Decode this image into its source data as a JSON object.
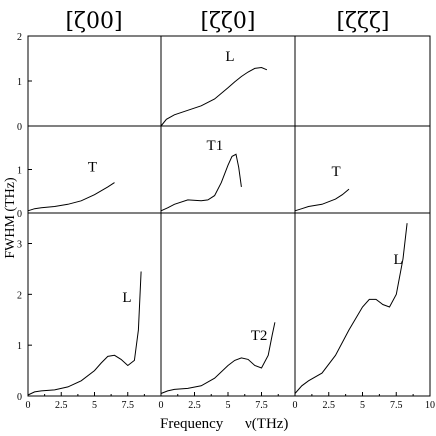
{
  "chart_data": {
    "type": "line",
    "ylabel": "FWHM  (THz)",
    "xlabel_word": "Frequency",
    "xlabel_symbol": "ν(THz)",
    "columns": [
      "[ζ00]",
      "[ζζ0]",
      "[ζζζ]"
    ],
    "x_range": [
      0,
      10
    ],
    "x_tick_labels": [
      "0",
      "2.5",
      "5",
      "7.5",
      "0",
      "2.5",
      "5",
      "7.5",
      "0",
      "2.5",
      "5",
      "7.5",
      "10"
    ],
    "rows": [
      {
        "ylim": [
          0,
          2
        ],
        "y_ticks": [
          "0",
          "1",
          "2"
        ]
      },
      {
        "ylim": [
          0,
          2
        ],
        "y_ticks": [
          "0",
          "1"
        ]
      },
      {
        "ylim": [
          0,
          3.6
        ],
        "y_ticks": [
          "0",
          "1",
          "2",
          "3"
        ]
      }
    ],
    "panels": [
      {
        "row": 0,
        "col": 1,
        "label": "L",
        "label_pos": [
          4.8,
          1.45
        ],
        "x": [
          0,
          0.4,
          1,
          2,
          3,
          4,
          5,
          5.5,
          6,
          6.5,
          7,
          7.5,
          7.9
        ],
        "y": [
          0,
          0.15,
          0.25,
          0.35,
          0.45,
          0.6,
          0.85,
          0.98,
          1.1,
          1.2,
          1.28,
          1.3,
          1.25
        ]
      },
      {
        "row": 1,
        "col": 0,
        "label": "T",
        "label_pos": [
          4.5,
          0.95
        ],
        "x": [
          0,
          0.5,
          1,
          2,
          3,
          4,
          5,
          6,
          6.5
        ],
        "y": [
          0.05,
          0.1,
          0.12,
          0.15,
          0.2,
          0.28,
          0.42,
          0.6,
          0.7
        ]
      },
      {
        "row": 1,
        "col": 1,
        "label": "T1",
        "label_pos": [
          3.4,
          1.45
        ],
        "x": [
          0,
          0.5,
          1,
          2,
          3,
          3.5,
          4,
          4.5,
          5,
          5.3,
          5.6,
          5.8,
          6
        ],
        "y": [
          0.05,
          0.12,
          0.2,
          0.3,
          0.28,
          0.3,
          0.4,
          0.7,
          1.1,
          1.3,
          1.35,
          1.05,
          0.6
        ]
      },
      {
        "row": 1,
        "col": 2,
        "label": "T",
        "label_pos": [
          2.7,
          0.85
        ],
        "x": [
          0,
          0.5,
          1,
          2,
          3,
          3.5,
          4
        ],
        "y": [
          0.05,
          0.1,
          0.15,
          0.2,
          0.32,
          0.42,
          0.55
        ]
      },
      {
        "row": 2,
        "col": 0,
        "label": "L",
        "label_pos": [
          7.1,
          1.85
        ],
        "x": [
          0,
          0.5,
          1,
          2,
          3,
          4,
          5,
          5.5,
          6,
          6.5,
          7,
          7.5,
          8,
          8.3,
          8.5
        ],
        "y": [
          0.02,
          0.08,
          0.1,
          0.12,
          0.18,
          0.3,
          0.5,
          0.65,
          0.78,
          0.8,
          0.72,
          0.6,
          0.7,
          1.3,
          2.45
        ]
      },
      {
        "row": 2,
        "col": 1,
        "label": "T2",
        "label_pos": [
          6.7,
          1.1
        ],
        "x": [
          0,
          0.5,
          1,
          2,
          3,
          4,
          5,
          5.5,
          6,
          6.5,
          7,
          7.5,
          8,
          8.3,
          8.5
        ],
        "y": [
          0.05,
          0.1,
          0.13,
          0.15,
          0.2,
          0.35,
          0.6,
          0.7,
          0.75,
          0.72,
          0.6,
          0.55,
          0.8,
          1.2,
          1.45
        ]
      },
      {
        "row": 2,
        "col": 2,
        "label": "L",
        "label_pos": [
          7.3,
          2.6
        ],
        "x": [
          0,
          0.5,
          1,
          2,
          3,
          4,
          5,
          5.5,
          6,
          6.5,
          7,
          7.5,
          8,
          8.3
        ],
        "y": [
          0.05,
          0.2,
          0.3,
          0.45,
          0.8,
          1.3,
          1.75,
          1.9,
          1.9,
          1.8,
          1.75,
          2.0,
          2.7,
          3.4
        ]
      }
    ]
  }
}
